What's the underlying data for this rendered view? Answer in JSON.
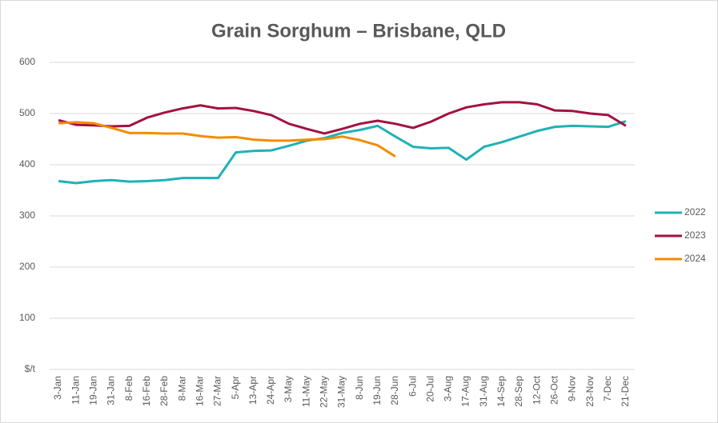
{
  "chart_data": {
    "type": "line",
    "title": "Grain Sorghum – Brisbane, QLD",
    "categories": [
      "3-Jan",
      "11-Jan",
      "19-Jan",
      "31-Jan",
      "8-Feb",
      "16-Feb",
      "28-Feb",
      "8-Mar",
      "16-Mar",
      "27-Mar",
      "5-Apr",
      "13-Apr",
      "24-Apr",
      "3-May",
      "11-May",
      "22-May",
      "31-May",
      "8-Jun",
      "19-Jun",
      "28-Jun",
      "6-Jul",
      "20-Jul",
      "3-Aug",
      "17-Aug",
      "31-Aug",
      "14-Sep",
      "28-Sep",
      "12-Oct",
      "26-Oct",
      "9-Nov",
      "23-Nov",
      "7-Dec",
      "21-Dec"
    ],
    "series": [
      {
        "name": "2022",
        "color": "#1fb2b5",
        "values": [
          368,
          364,
          368,
          370,
          367,
          368,
          370,
          374,
          374,
          374,
          424,
          427,
          428,
          437,
          447,
          452,
          462,
          468,
          476,
          455,
          435,
          432,
          433,
          410,
          435,
          444,
          455,
          466,
          474,
          476,
          475,
          474,
          485
        ]
      },
      {
        "name": "2023",
        "color": "#a3123f",
        "values": [
          487,
          478,
          477,
          475,
          476,
          492,
          502,
          510,
          516,
          510,
          511,
          505,
          497,
          480,
          470,
          461,
          470,
          480,
          486,
          480,
          472,
          484,
          500,
          512,
          518,
          522,
          522,
          518,
          506,
          505,
          500,
          497,
          476
        ]
      },
      {
        "name": "2024",
        "color": "#f28c00",
        "values": [
          481,
          483,
          481,
          472,
          462,
          462,
          461,
          461,
          456,
          453,
          454,
          449,
          447,
          447,
          449,
          450,
          455,
          448,
          438,
          416,
          null,
          null,
          null,
          null,
          null,
          null,
          null,
          null,
          null,
          null,
          null,
          null,
          null
        ]
      }
    ],
    "ylim": [
      0,
      600
    ],
    "yticks": [
      {
        "value": 0,
        "label": "$/t"
      },
      100,
      200,
      300,
      400,
      500,
      600
    ],
    "grid": true,
    "legend": "right"
  }
}
